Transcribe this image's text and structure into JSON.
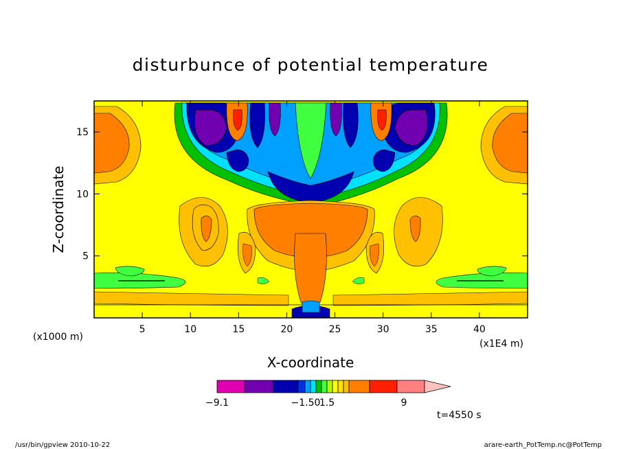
{
  "chart_data": {
    "type": "heatmap",
    "title": "disturbunce of potential temperature",
    "xlabel": "X-coordinate",
    "ylabel": "Z-coordinate",
    "x_unit_left": "(x1000 m)",
    "x_unit_right": "(x1E4 m)",
    "xlim": [
      0,
      45
    ],
    "ylim": [
      0,
      17.5
    ],
    "x_ticks": [
      5,
      10,
      15,
      20,
      25,
      30,
      35,
      40
    ],
    "y_ticks": [
      5,
      10,
      15
    ],
    "colorbar": {
      "colors": [
        "#e000b0",
        "#7000b0",
        "#0000b0",
        "#0030e0",
        "#00a0ff",
        "#00e0ff",
        "#00c000",
        "#40ff40",
        "#b0ff00",
        "#ffff00",
        "#ffe000",
        "#ffc000",
        "#ff8000",
        "#ff2000",
        "#ff8080",
        "#ffc0c0"
      ],
      "labels": [
        "−9.1",
        "−1.50",
        "1.5",
        "9"
      ]
    },
    "time_label": "t=4550 s"
  },
  "footer": {
    "left": "/usr/bin/gpview   2010-10-22",
    "right": "arare-earth_PotTemp.nc@PotTemp"
  }
}
